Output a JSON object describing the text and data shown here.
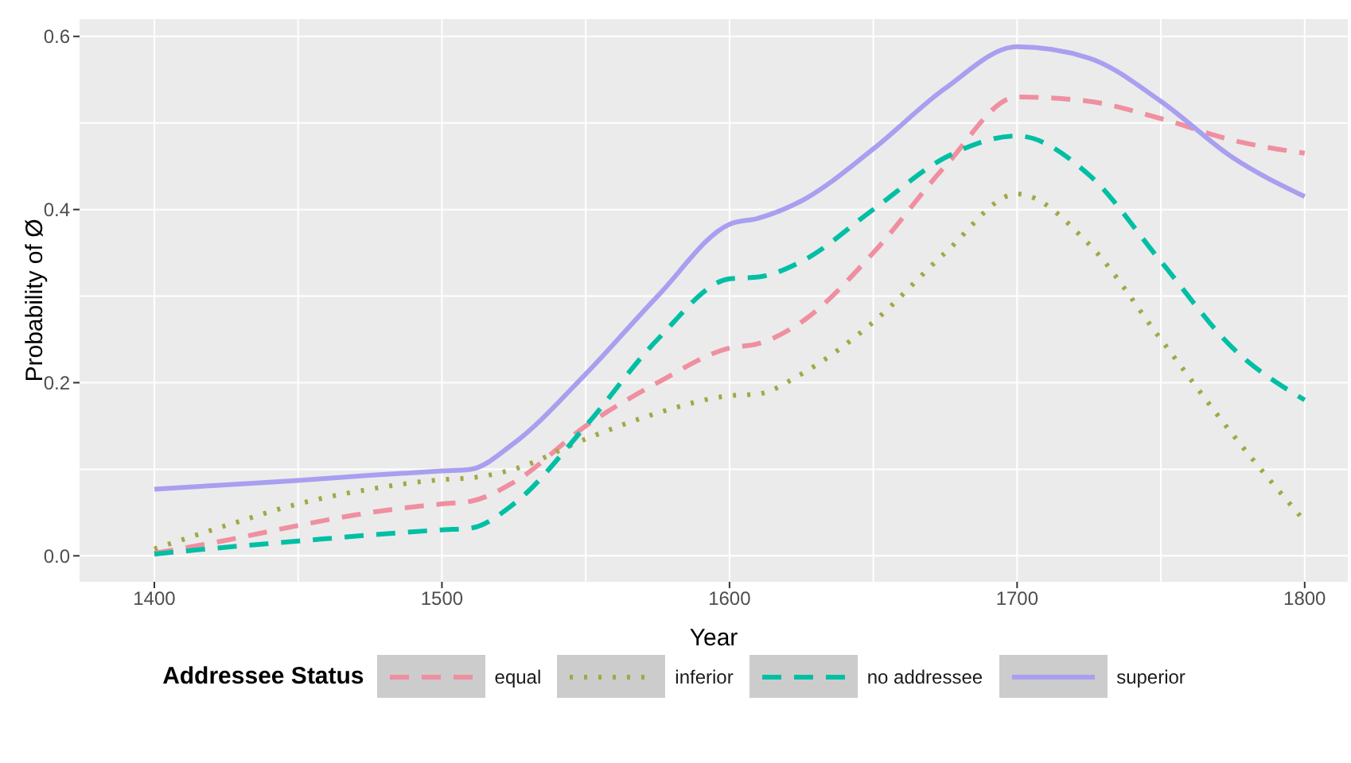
{
  "chart_data": {
    "type": "line",
    "xlabel": "Year",
    "ylabel": "Probability of Ø",
    "legend_title": "Addressee Status",
    "legend": "bottom",
    "grid": true,
    "marker": "none",
    "x": [
      1400,
      1425,
      1450,
      1475,
      1500,
      1510,
      1525,
      1550,
      1575,
      1600,
      1610,
      1625,
      1650,
      1675,
      1700,
      1725,
      1750,
      1775,
      1800
    ],
    "xlim": [
      1374,
      1815
    ],
    "xticks": [
      1400,
      1500,
      1600,
      1700,
      1800
    ],
    "ylim": [
      -0.03,
      0.62
    ],
    "yticks": [
      {
        "value": 0,
        "label": "0.0"
      },
      {
        "value": 0.2,
        "label": "0.2"
      },
      {
        "value": 0.4,
        "label": "0.4"
      },
      {
        "value": 0.6,
        "label": "0.6"
      }
    ],
    "series": [
      {
        "name": "equal",
        "color": "#ef8fa0",
        "line_style": "dashed",
        "values": [
          0.003,
          0.018,
          0.035,
          0.05,
          0.06,
          0.063,
          0.085,
          0.15,
          0.2,
          0.24,
          0.245,
          0.27,
          0.35,
          0.45,
          0.53,
          0.525,
          0.505,
          0.48,
          0.465
        ]
      },
      {
        "name": "inferior",
        "color": "#a3a745",
        "line_style": "dotted",
        "values": [
          0.008,
          0.035,
          0.06,
          0.077,
          0.088,
          0.09,
          0.1,
          0.135,
          0.165,
          0.185,
          0.187,
          0.21,
          0.27,
          0.35,
          0.418,
          0.36,
          0.25,
          0.14,
          0.04
        ]
      },
      {
        "name": "no addressee",
        "color": "#00bfa4",
        "line_style": "dashed",
        "values": [
          0.002,
          0.01,
          0.017,
          0.024,
          0.03,
          0.032,
          0.06,
          0.15,
          0.25,
          0.32,
          0.322,
          0.34,
          0.4,
          0.46,
          0.485,
          0.44,
          0.34,
          0.24,
          0.18
        ]
      },
      {
        "name": "superior",
        "color": "#a99ff0",
        "line_style": "solid",
        "values": [
          0.077,
          0.082,
          0.087,
          0.093,
          0.098,
          0.1,
          0.13,
          0.21,
          0.3,
          0.383,
          0.39,
          0.41,
          0.47,
          0.54,
          0.588,
          0.575,
          0.525,
          0.46,
          0.415
        ]
      }
    ]
  }
}
